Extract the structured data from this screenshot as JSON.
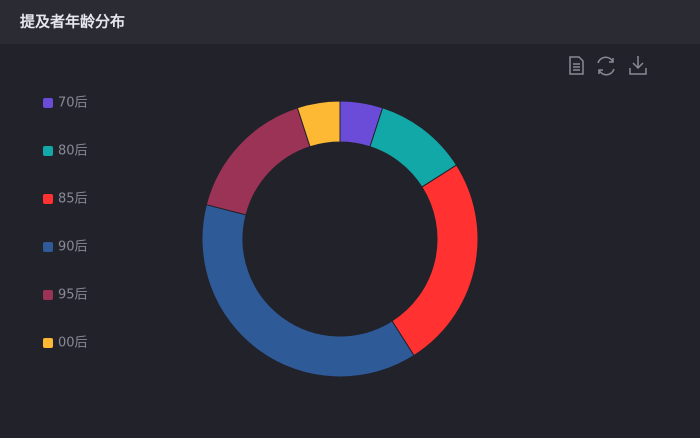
{
  "chart_data": {
    "type": "pie",
    "title": "提及者年龄分布",
    "categories": [
      "70后",
      "80后",
      "85后",
      "90后",
      "95后",
      "00后"
    ],
    "values": [
      5,
      11,
      25,
      38,
      16,
      5
    ],
    "colors": [
      "#6a4cd8",
      "#13a8a8",
      "#ff3131",
      "#2e5a98",
      "#9b3356",
      "#fdb933"
    ],
    "legend": "left"
  }
}
